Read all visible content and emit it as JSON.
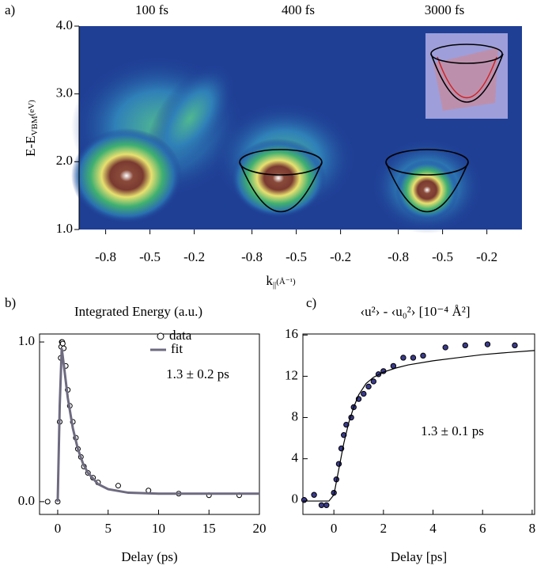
{
  "chart_data": [
    {
      "type": "image",
      "label": "a)",
      "ylabel": "E-E",
      "ylabel_sub": "VBM",
      "ylabel_unit": "(eV)",
      "xlabel": "k",
      "xlabel_sub": "||",
      "xlabel_unit": "(Å⁻¹)",
      "ylim": [
        1.0,
        4.0
      ],
      "yticks": [
        {
          "value": 1,
          "label": "1.0"
        },
        {
          "value": 2,
          "label": "2.0"
        },
        {
          "value": 3,
          "label": "3.0"
        },
        {
          "value": 4,
          "label": "4.0"
        }
      ],
      "xlim": [
        -0.98,
        0.01
      ],
      "panels": [
        {
          "title": "100 fs",
          "xticks": [
            -0.8,
            -0.5,
            -0.2
          ]
        },
        {
          "title": "400 fs",
          "xticks": [
            -0.8,
            -0.5,
            -0.2
          ]
        },
        {
          "title": "3000 fs",
          "xticks": [
            -0.8,
            -0.5,
            -0.2
          ]
        }
      ]
    },
    {
      "type": "scatter",
      "label": "b)",
      "title": "Integrated Energy (a.u.)",
      "xlabel": "Delay (ps)",
      "annotation": "1.3 ± 0.2 ps",
      "xlim": [
        -1.8,
        20
      ],
      "ylim": [
        -0.08,
        1.05
      ],
      "xticks": [
        0,
        5,
        10,
        15,
        20
      ],
      "yticks": [
        {
          "value": 0,
          "label": "0.0"
        },
        {
          "value": 1,
          "label": "1.0"
        }
      ],
      "series": [
        {
          "name": "data",
          "color": "#000000",
          "x": [
            -1,
            0,
            0.2,
            0.3,
            0.35,
            0.4,
            0.45,
            0.5,
            0.6,
            0.8,
            1,
            1.2,
            1.5,
            1.8,
            2,
            2.3,
            2.6,
            3,
            3.5,
            4,
            6,
            9,
            12,
            15,
            18
          ],
          "values": [
            0,
            0,
            0.5,
            0.9,
            0.97,
            1.0,
            1.0,
            0.99,
            0.96,
            0.85,
            0.7,
            0.6,
            0.5,
            0.4,
            0.33,
            0.28,
            0.22,
            0.18,
            0.15,
            0.12,
            0.1,
            0.07,
            0.05,
            0.04,
            0.04
          ]
        },
        {
          "name": "fit",
          "color": "#6e6a80",
          "x": [
            0,
            0.2,
            0.4,
            0.6,
            1,
            1.5,
            2,
            2.5,
            3,
            4,
            5,
            7,
            10,
            15,
            20
          ],
          "values": [
            0,
            0.6,
            0.96,
            0.86,
            0.65,
            0.46,
            0.33,
            0.24,
            0.18,
            0.11,
            0.078,
            0.056,
            0.05,
            0.05,
            0.05
          ]
        }
      ]
    },
    {
      "type": "scatter",
      "label": "c)",
      "title": "‹u²› - ‹u₀²›  [10⁻⁴ Å²]",
      "xlabel": "Delay [ps]",
      "annotation": "1.3 ± 0.1 ps",
      "xlim": [
        -1.25,
        8.1
      ],
      "ylim": [
        -1.4,
        16.1
      ],
      "xticks": [
        0,
        2,
        4,
        6,
        8
      ],
      "yticks": [
        0,
        4,
        8,
        12,
        16
      ],
      "series": [
        {
          "color": "#3a3a8c",
          "x": [
            -1.2,
            -0.8,
            -0.5,
            -0.3,
            0,
            0.1,
            0.2,
            0.3,
            0.4,
            0.5,
            0.7,
            0.8,
            1,
            1.2,
            1.4,
            1.6,
            1.8,
            2,
            2.4,
            2.8,
            3.2,
            3.6,
            4.5,
            5.3,
            6.2,
            7.3
          ],
          "values": [
            0,
            0.5,
            -0.5,
            -0.5,
            0.7,
            2,
            3.5,
            5,
            6.3,
            7.3,
            8,
            9,
            9.8,
            10.3,
            11,
            11.5,
            12.2,
            12.5,
            13,
            13.8,
            13.8,
            14,
            14.8,
            15,
            15.1,
            15
          ]
        },
        {
          "color": "#000000",
          "x": [
            -1.25,
            -0.2,
            0,
            0.2,
            0.4,
            0.6,
            0.8,
            1,
            1.3,
            1.6,
            2,
            2.5,
            3,
            4,
            5,
            6,
            7,
            8.1
          ],
          "values": [
            -0.1,
            -0.1,
            0.5,
            3,
            5.5,
            7.5,
            9,
            10.2,
            11.3,
            11.9,
            12.4,
            12.8,
            13.1,
            13.5,
            13.8,
            14.1,
            14.3,
            14.5
          ]
        }
      ]
    }
  ]
}
